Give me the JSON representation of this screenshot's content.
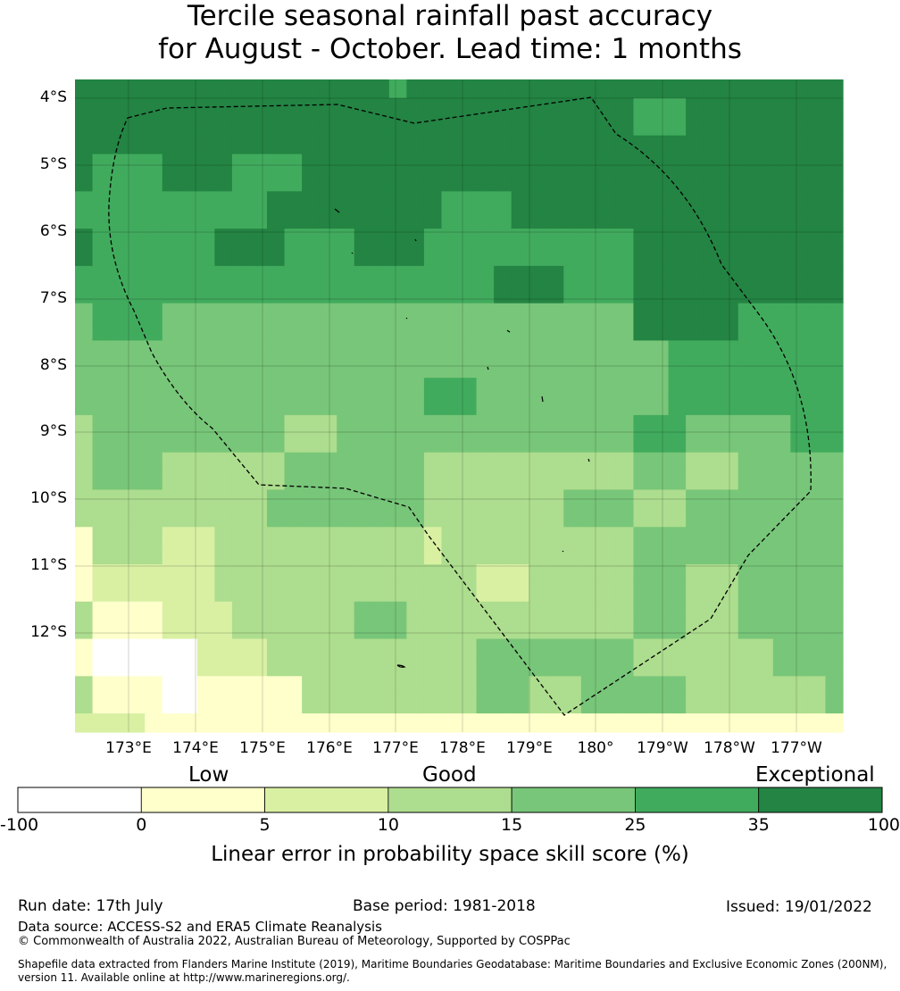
{
  "title_line1": "Tercile seasonal rainfall past accuracy",
  "title_line2": "for August - October. Lead time: 1 months",
  "lat_labels": [
    "4°S",
    "5°S",
    "6°S",
    "7°S",
    "8°S",
    "9°S",
    "10°S",
    "11°S",
    "12°S"
  ],
  "lon_labels": [
    "173°E",
    "174°E",
    "175°E",
    "176°E",
    "177°E",
    "178°E",
    "179°E",
    "180°",
    "179°W",
    "178°W",
    "177°W"
  ],
  "colorbar": {
    "categories": [
      "Low",
      "Good",
      "Exceptional"
    ],
    "ticks": [
      "-100",
      "0",
      "5",
      "10",
      "15",
      "25",
      "35",
      "100"
    ],
    "colors": [
      "#ffffff",
      "#ffffcc",
      "#d9f0a3",
      "#addd8e",
      "#78c679",
      "#41ab5d",
      "#238443"
    ],
    "label": "Linear error in probability space skill score (%)"
  },
  "grid": {
    "rows": [
      "66666666666666666656666666666666666666666666",
      "66666666666666666666666666666666555666666666",
      "66666666666666666666666666666666555666666666",
      "66666666666666666666666666666666666666666666",
      "65555666655556666666666666666666666666666666",
      "65555666655556666666666666666666666666666666",
      "55555555555666666666655556666666666666666666",
      "55555555555666666666655556666666666666666666",
      "65555555666655556666555555555555666666666666",
      "65555555666655556666555555555555666666666666",
      "55555555555555555555555566665555666666666666",
      "55555555555555555555555566665555666666666666",
      "45555444444444444444444444444444666666555555",
      "45555444444444444444444444444444666666555555",
      "44444444444444444444444444444444445555555555",
      "44444444444444444444444444444444445555555555",
      "44444444444444444444555444444444445555555555",
      "44444444444444444444555444444444445555555555",
      "34444444444433344444444444444444555444444555",
      "34444444444433344444444444444444555444444555",
      "34444333333344444444333333333333444333444444",
      "34444333333344444444333333333333444333444444",
      "33333333333444444444333333334444333444444444",
      "33333333333444444444333333334444333444444444",
      "13333222333333333333233333333333444444444444",
      "13333222333333333333233333333333444444444444",
      "12222222333333333333333222333333444333444444",
      "12222222333333333333333222333333444333444444",
      "31111222233333334443333333333333444333444444",
      "31111222233333334443333333333333444333444444",
      "10000002222333333333333444444444333333334444",
      "10000002222333333333333444444444333333334444",
      "31111001111113333333333444333444444333333334",
      "31111001111113333333333444333444444333333334",
      "22221111111111111111111111111111111111111111"
    ]
  }
}
